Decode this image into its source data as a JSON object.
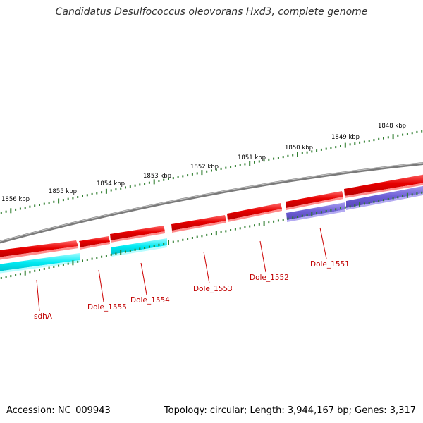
{
  "title": "Candidatus Desulfococcus oleovorans Hxd3, complete genome",
  "footer": {
    "accession": "Accession: NC_009943",
    "stats": "Topology: circular; Length: 3,944,167 bp; Genes: 3,317"
  },
  "colors": {
    "background": "#ffffff",
    "backbone": "#7a7a7a",
    "tick_marks": "#2e7d2e",
    "forward_gene": "#e60000",
    "reverse_gene_cyan": "#00e5ee",
    "reverse_gene_purple": "#6a5acd",
    "label_text": "#c00000"
  },
  "scale_labels": [
    "1856 kbp",
    "1855 kbp",
    "1854 kbp",
    "1853 kbp",
    "1852 kbp",
    "1851 kbp",
    "1850 kbp",
    "1849 kbp",
    "1848 kbp"
  ],
  "genes": [
    {
      "label": "sdhA",
      "strand": "reverse",
      "color": "cyan"
    },
    {
      "label": "Dole_1555",
      "strand": "forward",
      "color": "red"
    },
    {
      "label": "Dole_1554",
      "strand": "reverse",
      "color": "cyan"
    },
    {
      "label": "Dole_1553",
      "strand": "forward",
      "color": "red"
    },
    {
      "label": "Dole_1552",
      "strand": "forward",
      "color": "red"
    },
    {
      "label": "Dole_1551",
      "strand": "reverse",
      "color": "purple"
    }
  ]
}
